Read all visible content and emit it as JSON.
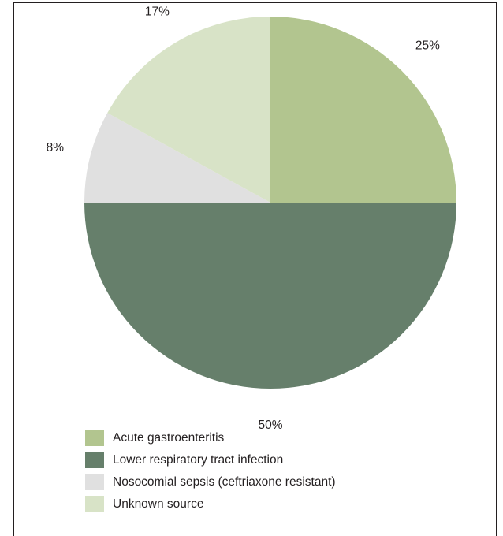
{
  "chart_data": {
    "type": "pie",
    "categories": [
      "Acute gastroenteritis",
      "Lower respiratory tract infection",
      "Nosocomial sepsis (ceftriaxone resistant)",
      "Unknown source"
    ],
    "values": [
      25,
      50,
      8,
      17
    ],
    "value_labels": [
      "25%",
      "50%",
      "8%",
      "17%"
    ],
    "colors": [
      "#b2c58f",
      "#667f6b",
      "#e0e0e0",
      "#d8e3c7"
    ],
    "legend_position": "bottom",
    "start_angle": "12 o'clock, clockwise"
  },
  "legend": {
    "items": [
      {
        "label": "Acute gastroenteritis",
        "color": "#b2c58f"
      },
      {
        "label": "Lower respiratory tract infection",
        "color": "#667f6b"
      },
      {
        "label": "Nosocomial sepsis (ceftriaxone resistant)",
        "color": "#e0e0e0"
      },
      {
        "label": "Unknown source",
        "color": "#d8e3c7"
      }
    ]
  }
}
